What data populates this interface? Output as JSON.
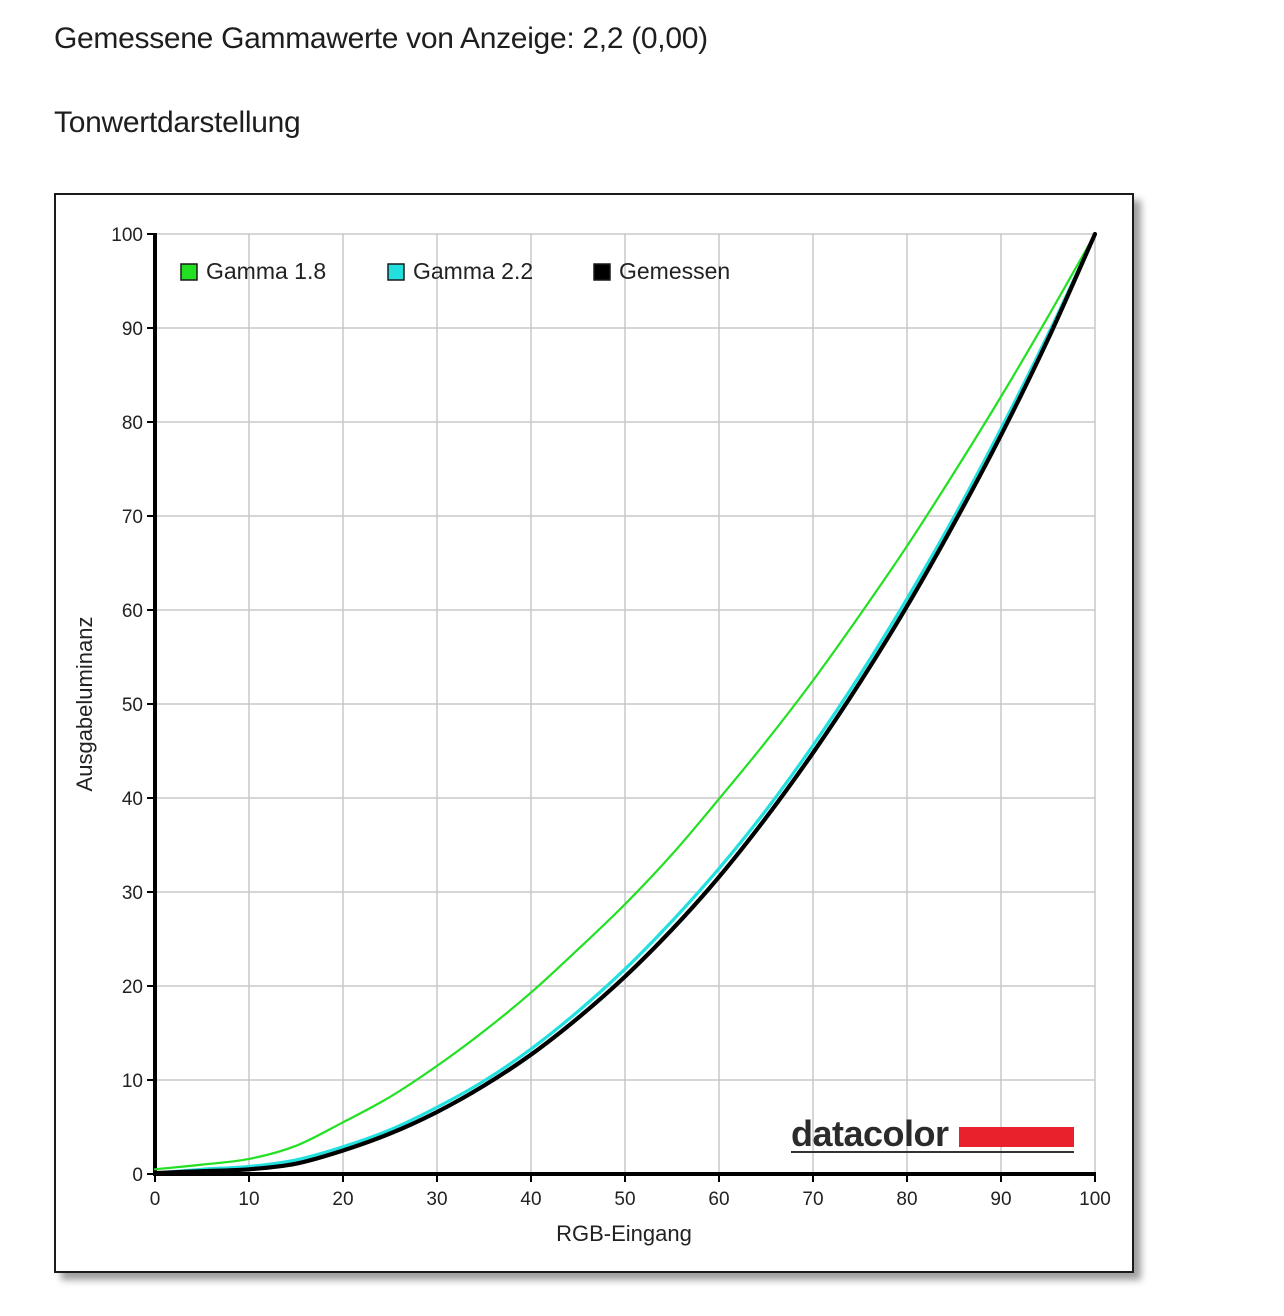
{
  "page": {
    "gamma_heading": "Gemessene Gammawerte von Anzeige: 2,2 (0,00)",
    "tone_heading": "Tonwertdarstellung"
  },
  "logo": {
    "text": "datacolor",
    "accent_color": "#e8212c"
  },
  "chart_data": {
    "type": "line",
    "xlabel": "RGB-Eingang",
    "ylabel": "Ausgabeluminanz",
    "xlim": [
      0,
      100
    ],
    "ylim": [
      0,
      100
    ],
    "xticks": [
      0,
      10,
      20,
      30,
      40,
      50,
      60,
      70,
      80,
      90,
      100
    ],
    "yticks": [
      0,
      10,
      20,
      30,
      40,
      50,
      60,
      70,
      80,
      90,
      100
    ],
    "grid": true,
    "legend_position": "top-left",
    "series": [
      {
        "name": "Gamma 1.8",
        "color": "#22e022",
        "x": [
          0,
          5,
          10,
          15,
          20,
          25,
          30,
          35,
          40,
          45,
          50,
          55,
          60,
          65,
          70,
          75,
          80,
          85,
          90,
          95,
          100
        ],
        "y": [
          0.5,
          1.0,
          1.6,
          3.0,
          5.5,
          8.2,
          11.5,
          15.2,
          19.3,
          23.9,
          28.7,
          34.0,
          39.9,
          46.0,
          52.5,
          59.5,
          66.8,
          74.6,
          82.7,
          91.2,
          100
        ]
      },
      {
        "name": "Gamma 2.2",
        "color": "#22e0e0",
        "x": [
          0,
          5,
          10,
          15,
          20,
          25,
          30,
          35,
          40,
          45,
          50,
          55,
          60,
          65,
          70,
          75,
          80,
          85,
          90,
          95,
          100
        ],
        "y": [
          0.1,
          0.5,
          0.8,
          1.5,
          2.9,
          4.7,
          7.1,
          9.9,
          13.3,
          17.3,
          21.8,
          26.9,
          32.5,
          38.7,
          45.6,
          53.1,
          61.2,
          69.9,
          79.3,
          89.3,
          100
        ]
      },
      {
        "name": "Gemessen",
        "color": "#000000",
        "x": [
          0,
          5,
          10,
          15,
          20,
          25,
          30,
          35,
          40,
          45,
          50,
          55,
          60,
          65,
          70,
          75,
          80,
          85,
          90,
          95,
          100
        ],
        "y": [
          0.1,
          0.3,
          0.5,
          1.1,
          2.5,
          4.3,
          6.6,
          9.4,
          12.7,
          16.6,
          21.0,
          26.0,
          31.6,
          37.9,
          44.8,
          52.3,
          60.4,
          69.2,
          78.6,
          88.8,
          100
        ]
      }
    ]
  }
}
